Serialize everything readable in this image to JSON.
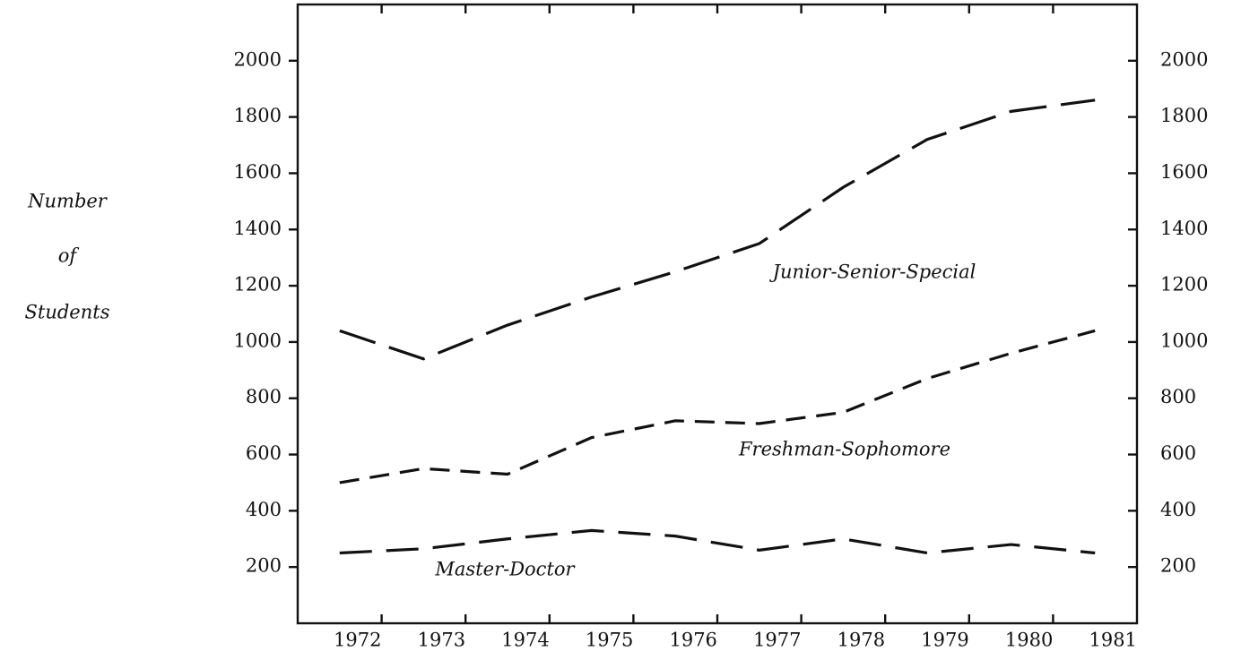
{
  "chart_data": {
    "type": "line",
    "ylabel": [
      "Number",
      "of",
      "Students"
    ],
    "categories": [
      "1972",
      "1973",
      "1974",
      "1975",
      "1976",
      "1977",
      "1978",
      "1979",
      "1980",
      "1981"
    ],
    "series": [
      {
        "name": "Junior-Senior-Special",
        "color": "#111111",
        "values": [
          1040,
          940,
          1060,
          1160,
          1250,
          1350,
          1550,
          1720,
          1820,
          1860
        ]
      },
      {
        "name": "Freshman-Sophomore",
        "color": "#111111",
        "values": [
          500,
          550,
          530,
          660,
          720,
          710,
          750,
          870,
          960,
          1040
        ]
      },
      {
        "name": "Master-Doctor",
        "color": "#111111",
        "values": [
          250,
          265,
          300,
          330,
          310,
          260,
          300,
          250,
          280,
          250
        ]
      }
    ],
    "ylim": [
      0,
      2200
    ],
    "yticks": [
      200,
      400,
      600,
      800,
      1000,
      1200,
      1400,
      1600,
      1800,
      2000
    ],
    "grid": false
  }
}
